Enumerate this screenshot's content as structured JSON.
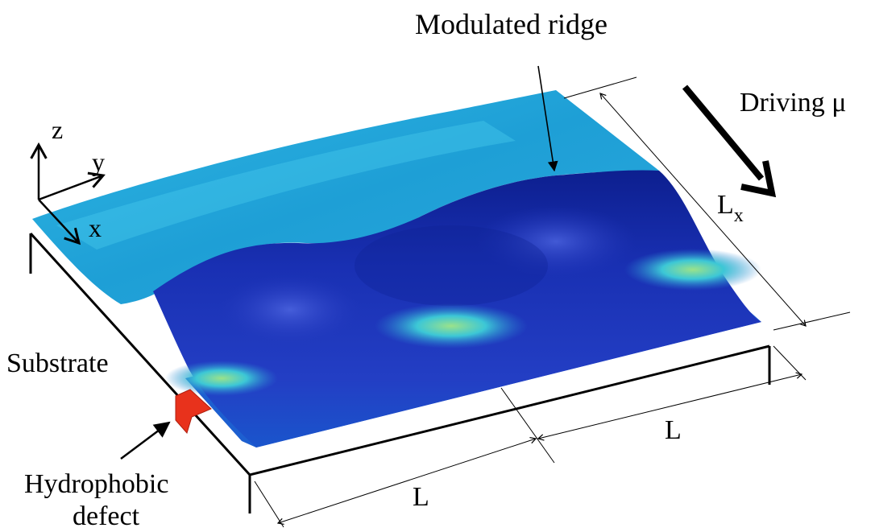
{
  "labels": {
    "modulated_ridge": "Modulated ridge",
    "driving": "Driving μ",
    "axis_z": "z",
    "axis_y": "y",
    "axis_x": "x",
    "substrate": "Substrate",
    "defect_line1": "Hydrophobic",
    "defect_line2": "defect",
    "length_front": "L",
    "length_right": "L",
    "length_x_base": "L",
    "length_x_sub": "x"
  },
  "colors": {
    "film": "#22a5d8",
    "film_light": "#35c4e6",
    "ridge": "#1a2fb8",
    "ridge_dark": "#0b1d8a",
    "ridge_light": "#3a58d6",
    "defect": "#e8321c",
    "ink": "#000000"
  }
}
